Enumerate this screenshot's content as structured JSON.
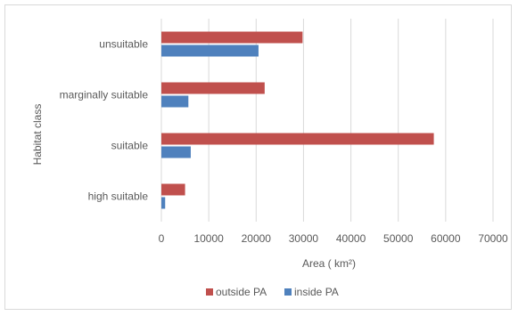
{
  "chart_data": {
    "type": "bar",
    "orientation": "horizontal",
    "categories": [
      "high suitable",
      "suitable",
      "marginally suitable",
      "unsuitable"
    ],
    "series": [
      {
        "name": "outside PA",
        "color": "#c0504d",
        "values": [
          5000,
          57500,
          21800,
          29800
        ]
      },
      {
        "name": "inside PA",
        "color": "#4f81bd",
        "values": [
          800,
          6200,
          5700,
          20500
        ]
      }
    ],
    "xlabel": "Area ( km²)",
    "ylabel": "Habitat class",
    "xlim": [
      0,
      70000
    ],
    "x_ticks": [
      0,
      10000,
      20000,
      30000,
      40000,
      50000,
      60000,
      70000
    ],
    "x_tick_labels": [
      "0",
      "10000",
      "20000",
      "30000",
      "40000",
      "50000",
      "60000",
      "70000"
    ],
    "grid": "vertical",
    "legend_position": "bottom"
  }
}
